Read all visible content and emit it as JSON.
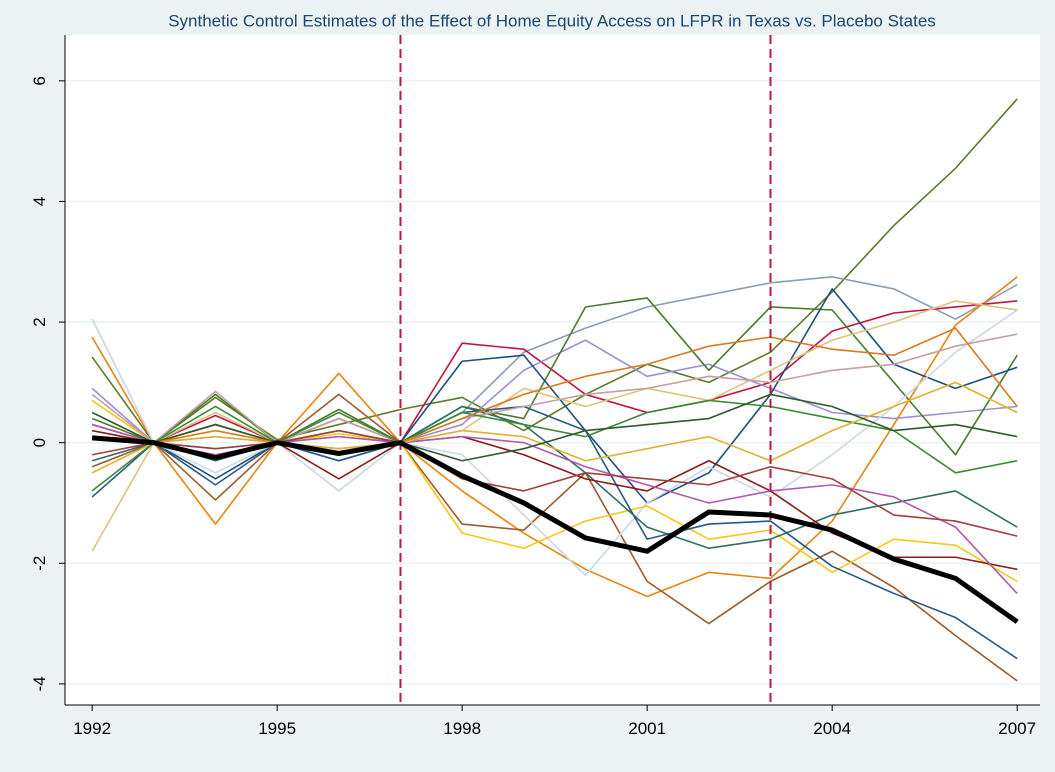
{
  "chart_data": {
    "type": "line",
    "title": "Synthetic Control Estimates of the Effect of Home Equity Access on LFPR in Texas vs. Placebo States",
    "x": [
      1992,
      1993,
      1994,
      1995,
      1996,
      1997,
      1998,
      1999,
      2000,
      2001,
      2002,
      2003,
      2004,
      2005,
      2006,
      2007
    ],
    "xlim": [
      1991.56,
      2007.37
    ],
    "xticks": [
      1992,
      1995,
      1998,
      2001,
      2004,
      2007
    ],
    "ylim": [
      -4.35,
      6.76
    ],
    "yticks": [
      -4,
      -2,
      0,
      2,
      4,
      6
    ],
    "grid": true,
    "reference_lines": {
      "x": [
        1997,
        2003
      ],
      "color": "#c4163c",
      "style": "dashed"
    },
    "series": [
      {
        "color": "#5d7a2a",
        "values": [
          1.42,
          0,
          0.75,
          0.05,
          0.3,
          0.55,
          0.75,
          0.2,
          0.8,
          1.3,
          1.0,
          1.5,
          2.5,
          3.6,
          4.55,
          5.7
        ]
      },
      {
        "color": "#8b9db0",
        "values": [
          0.2,
          0,
          -0.1,
          0,
          -0.1,
          0,
          0.5,
          1.5,
          1.9,
          2.25,
          2.45,
          2.65,
          2.75,
          2.55,
          2.05,
          2.62
        ]
      },
      {
        "color": "#e8850e",
        "values": [
          1.75,
          0,
          -1.35,
          0,
          1.15,
          0,
          -0.8,
          -1.5,
          -2.1,
          -2.55,
          -2.15,
          -2.25,
          -1.3,
          0.3,
          1.95,
          2.75
        ]
      },
      {
        "color": "#c4163c",
        "values": [
          0.3,
          0,
          0.45,
          0,
          0.4,
          0,
          1.65,
          1.55,
          0.8,
          0.5,
          0.7,
          1.0,
          1.85,
          2.15,
          2.25,
          2.35
        ]
      },
      {
        "color": "#9a8fd6",
        "values": [
          0.9,
          0,
          0.1,
          0,
          0.1,
          0,
          0.3,
          1.2,
          1.7,
          1.1,
          1.3,
          0.9,
          0.5,
          0.4,
          0.5,
          0.6
        ]
      },
      {
        "color": "#4b7a2e",
        "values": [
          0.4,
          0,
          0.8,
          0,
          0.55,
          0,
          0.6,
          0.4,
          2.25,
          2.4,
          1.2,
          2.25,
          2.2,
          1.0,
          -0.2,
          1.45
        ]
      },
      {
        "color": "#1e4f7a",
        "values": [
          0.1,
          0,
          -0.6,
          0,
          -0.3,
          0,
          1.35,
          1.45,
          0.2,
          -1.0,
          -0.5,
          0.8,
          2.55,
          1.3,
          0.9,
          1.25
        ]
      },
      {
        "color": "#9b5b2c",
        "values": [
          -0.4,
          0,
          -0.95,
          0,
          0.8,
          0,
          -1.35,
          -1.45,
          -0.5,
          -2.3,
          -3.0,
          -2.3,
          -1.8,
          -2.4,
          -3.2,
          -3.95
        ]
      },
      {
        "color": "#d8c67e",
        "values": [
          -1.8,
          0,
          0.5,
          0,
          0.2,
          0,
          0.2,
          0.9,
          0.6,
          0.9,
          0.7,
          1.2,
          1.7,
          2.0,
          2.35,
          2.2
        ]
      },
      {
        "color": "#c9d8e4",
        "values": [
          2.05,
          0,
          -0.5,
          0,
          -0.8,
          0,
          -0.2,
          -1.2,
          -2.2,
          -1.0,
          -0.4,
          -0.9,
          -0.2,
          0.6,
          1.5,
          2.2
        ]
      },
      {
        "color": "#f5c816",
        "values": [
          0.7,
          0,
          0.2,
          0,
          0.15,
          0,
          -1.5,
          -1.75,
          -1.3,
          -1.05,
          -1.6,
          -1.45,
          -2.15,
          -1.6,
          -1.7,
          -2.3
        ]
      },
      {
        "color": "#2f6e66",
        "values": [
          -0.3,
          0,
          -0.3,
          0,
          -0.2,
          0,
          0.6,
          0.3,
          -0.5,
          -1.4,
          -1.75,
          -1.6,
          -1.2,
          -1.0,
          -0.8,
          -1.4
        ]
      },
      {
        "color": "#2a5785",
        "values": [
          -0.9,
          0,
          -0.7,
          0,
          -0.3,
          0,
          0.5,
          0.6,
          0.2,
          -1.6,
          -1.35,
          -1.3,
          -2.05,
          -2.5,
          -2.9,
          -3.58
        ]
      },
      {
        "color": "#8b1a1a",
        "values": [
          0.2,
          0,
          0.3,
          0,
          -0.6,
          0,
          0.1,
          -0.2,
          -0.6,
          -0.8,
          -0.3,
          -0.8,
          -1.5,
          -1.9,
          -1.9,
          -2.1
        ]
      },
      {
        "color": "#c4a0a0",
        "values": [
          0.8,
          0,
          0.85,
          0,
          0.4,
          0,
          0.4,
          0.6,
          0.8,
          0.9,
          1.1,
          1.0,
          1.2,
          1.3,
          1.6,
          1.8
        ]
      },
      {
        "color": "#b05aa8",
        "values": [
          0.3,
          0,
          -0.2,
          0,
          0.1,
          0,
          0.1,
          0.0,
          -0.4,
          -0.7,
          -1.0,
          -0.8,
          -0.7,
          -0.9,
          -1.4,
          -2.5
        ]
      },
      {
        "color": "#3a8a3a",
        "values": [
          -0.8,
          0,
          0.6,
          0,
          0.5,
          0,
          0.5,
          0.3,
          0.1,
          0.5,
          0.7,
          0.6,
          0.4,
          0.2,
          -0.5,
          -0.3
        ]
      },
      {
        "color": "#e0b030",
        "values": [
          -0.5,
          0,
          0.1,
          0,
          -0.1,
          0,
          0.2,
          0.1,
          -0.3,
          -0.1,
          0.1,
          -0.3,
          0.2,
          0.6,
          1.0,
          0.5
        ]
      },
      {
        "color": "#2e5a2e",
        "values": [
          0.5,
          0,
          0.3,
          0,
          0.2,
          0,
          -0.3,
          -0.1,
          0.2,
          0.3,
          0.4,
          0.8,
          0.6,
          0.2,
          0.3,
          0.1
        ]
      },
      {
        "color": "#d97a20",
        "values": [
          0.1,
          0,
          0.2,
          0,
          -0.2,
          0,
          0.4,
          0.8,
          1.1,
          1.3,
          1.6,
          1.75,
          1.55,
          1.45,
          1.9,
          0.6
        ]
      },
      {
        "color": "#a04040",
        "values": [
          -0.2,
          0,
          -0.1,
          0,
          0.2,
          0,
          -0.6,
          -0.8,
          -0.5,
          -0.6,
          -0.7,
          -0.4,
          -0.6,
          -1.2,
          -1.3,
          -1.55
        ]
      },
      {
        "color": "#000000",
        "values": [
          0.08,
          0,
          -0.25,
          0,
          -0.18,
          0,
          -0.55,
          -1.0,
          -1.58,
          -1.8,
          -1.15,
          -1.2,
          -1.45,
          -1.93,
          -2.25,
          -2.97
        ]
      }
    ]
  }
}
